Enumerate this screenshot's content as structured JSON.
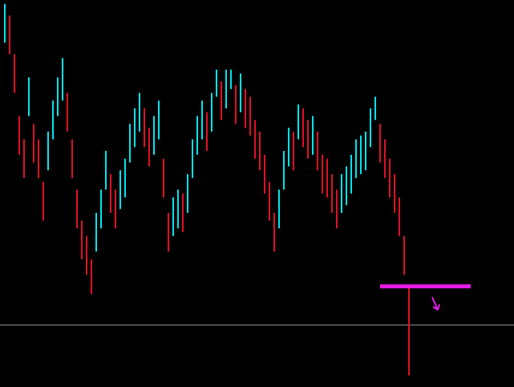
{
  "chart_data": {
    "type": "range-bar",
    "high": [
      99,
      96,
      86,
      70,
      64,
      80,
      68,
      64,
      53,
      66,
      74,
      80,
      85,
      76,
      64,
      51,
      43,
      39,
      33,
      45,
      51,
      61,
      55,
      51,
      56,
      59,
      68,
      72,
      76,
      72,
      67,
      70,
      74,
      59,
      45,
      49,
      51,
      50,
      55,
      64,
      70,
      74,
      71,
      76,
      82,
      79,
      82,
      82,
      78,
      81,
      77,
      75,
      69,
      66,
      60,
      53,
      45,
      51,
      61,
      67,
      66,
      73,
      72,
      69,
      70,
      66,
      60,
      59,
      55,
      51,
      55,
      57,
      60,
      64,
      65,
      66,
      72,
      75,
      68,
      64,
      59,
      55,
      49,
      39,
      26
    ],
    "low": [
      89,
      86,
      76,
      60,
      54,
      70,
      58,
      54,
      43,
      56,
      64,
      70,
      74,
      66,
      54,
      41,
      33,
      29,
      24,
      35,
      41,
      51,
      45,
      41,
      46,
      49,
      58,
      62,
      66,
      62,
      57,
      60,
      64,
      49,
      35,
      39,
      41,
      40,
      45,
      54,
      60,
      64,
      61,
      66,
      75,
      69,
      72,
      77,
      68,
      71,
      67,
      65,
      59,
      56,
      50,
      43,
      35,
      41,
      51,
      57,
      56,
      64,
      62,
      59,
      60,
      56,
      50,
      49,
      45,
      41,
      45,
      47,
      50,
      54,
      55,
      56,
      62,
      69,
      58,
      54,
      49,
      45,
      39,
      29,
      3
    ],
    "up_color": "#00e5ee",
    "down_color": "#e0102a",
    "ylim": [
      0,
      100
    ],
    "price_line": 16,
    "price_line_color": "#9a9a9a",
    "marker_level": 26,
    "marker_color": "#e61de6"
  }
}
